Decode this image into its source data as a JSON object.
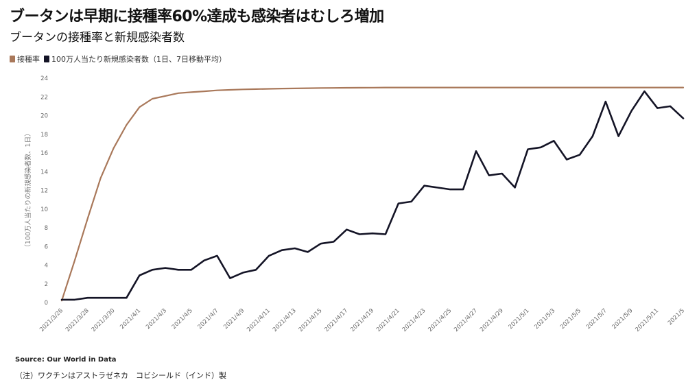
{
  "header": {
    "title": "ブータンは早期に接種率60%達成も感染者はむしろ増加",
    "subtitle": "ブータンの接種率と新規感染者数"
  },
  "footer": {
    "source": "Source: Our World in Data",
    "note": "（注）ワクチンはアストラゼネカ　コビシールド（インド）製"
  },
  "chart_data": {
    "type": "line",
    "ylabel": "（100万人当たりの新規感染者数、1日）",
    "ylim": [
      0,
      24
    ],
    "yticks": [
      "0",
      "2",
      "4",
      "6",
      "8",
      "10",
      "12",
      "14",
      "16",
      "18",
      "20",
      "22",
      "24"
    ],
    "grid": false,
    "legend_position": "top-left",
    "x_ticks": [
      "2021/3/26",
      "2021/3/28",
      "2021/3/30",
      "2021/4/1",
      "2021/4/3",
      "2021/4/5",
      "2021/4/7",
      "2021/4/9",
      "2021/4/11",
      "2021/4/13",
      "2021/4/15",
      "2021/4/17",
      "2021/4/19",
      "2021/4/21",
      "2021/4/23",
      "2021/4/25",
      "2021/4/27",
      "2021/4/29",
      "2021/5/1",
      "2021/5/3",
      "2021/5/5",
      "2021/5/7",
      "2021/5/9",
      "2021/5/11",
      "2021/5"
    ],
    "series": [
      {
        "name": "接種率",
        "color": "#a9785a",
        "values": [
          0.2,
          4.5,
          9.0,
          13.3,
          16.5,
          19.0,
          20.9,
          21.8,
          22.1,
          22.4,
          22.5,
          22.6,
          22.7,
          22.75,
          22.8,
          22.83,
          22.86,
          22.89,
          22.91,
          22.93,
          22.95,
          22.96,
          22.97,
          22.98,
          22.99,
          23.0,
          23.0,
          23.0,
          23.0,
          23.0,
          23.0,
          23.0,
          23.0,
          23.0,
          23.0,
          23.0,
          23.0,
          23.0,
          23.0,
          23.0,
          23.0,
          23.0,
          23.0,
          23.0,
          23.0,
          23.0,
          23.0,
          23.0,
          23.0
        ]
      },
      {
        "name": "100万人当たり新規感染者数（1日、7日移動平均）",
        "color": "#141426",
        "values": [
          0.3,
          0.3,
          0.5,
          0.5,
          0.5,
          0.5,
          2.9,
          3.5,
          3.7,
          3.5,
          3.5,
          4.5,
          5.0,
          2.6,
          3.2,
          3.5,
          5.0,
          5.6,
          5.8,
          5.4,
          6.3,
          6.5,
          7.8,
          7.3,
          7.4,
          7.3,
          10.6,
          10.8,
          12.5,
          12.3,
          12.1,
          12.1,
          16.2,
          13.6,
          13.8,
          12.3,
          16.4,
          16.6,
          17.3,
          15.3,
          15.8,
          17.8,
          21.5,
          17.8,
          20.5,
          22.6,
          20.8,
          21.0,
          19.7
        ]
      }
    ]
  }
}
